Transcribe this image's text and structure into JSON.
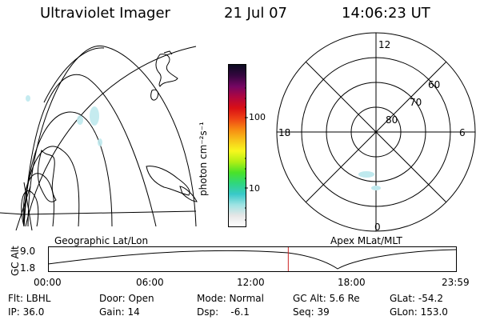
{
  "header": {
    "title": "Ultraviolet Imager",
    "date": "21 Jul 07",
    "time": "14:06:23 UT"
  },
  "colorbar": {
    "unit_label": "photon cm⁻²s⁻¹",
    "ticks": [
      "100",
      "10"
    ],
    "colors": [
      "#ffffff",
      "#e6e6e6",
      "#9ee3e3",
      "#39c9c9",
      "#2fd77d",
      "#49e229",
      "#b2ef14",
      "#f7f71e",
      "#f7c41a",
      "#f78a12",
      "#ee4315",
      "#d90f15",
      "#b0063f",
      "#740663",
      "#35063f",
      "#0b0b20"
    ]
  },
  "left_panel": {
    "caption": "Geographic Lat/Lon"
  },
  "polar_panel": {
    "caption": "Apex MLat/MLT",
    "mlt_labels": {
      "top": "12",
      "left": "18",
      "right": "6",
      "bottom": "0"
    },
    "lat_labels": [
      "80",
      "70",
      "60"
    ]
  },
  "altitude_plot": {
    "ylabel": "GC Alt",
    "yticks": [
      "9.0",
      "1.8"
    ],
    "xticks": [
      "00:00",
      "06:00",
      "12:00",
      "18:00",
      "23:59"
    ],
    "current_time_hours": 14.106,
    "marker_color": "#cc2222"
  },
  "footer": {
    "col1": [
      "Flt: LBHL",
      "IP: 36.0"
    ],
    "col2": [
      "Door: Open",
      "Gain: 14"
    ],
    "col3": [
      "Mode: Normal",
      "Dsp:    -6.1"
    ],
    "col4": [
      "GC Alt: 5.6 Re",
      "Seq: 39"
    ],
    "col5": [
      "GLat: -54.2",
      "GLon: 153.0"
    ]
  }
}
